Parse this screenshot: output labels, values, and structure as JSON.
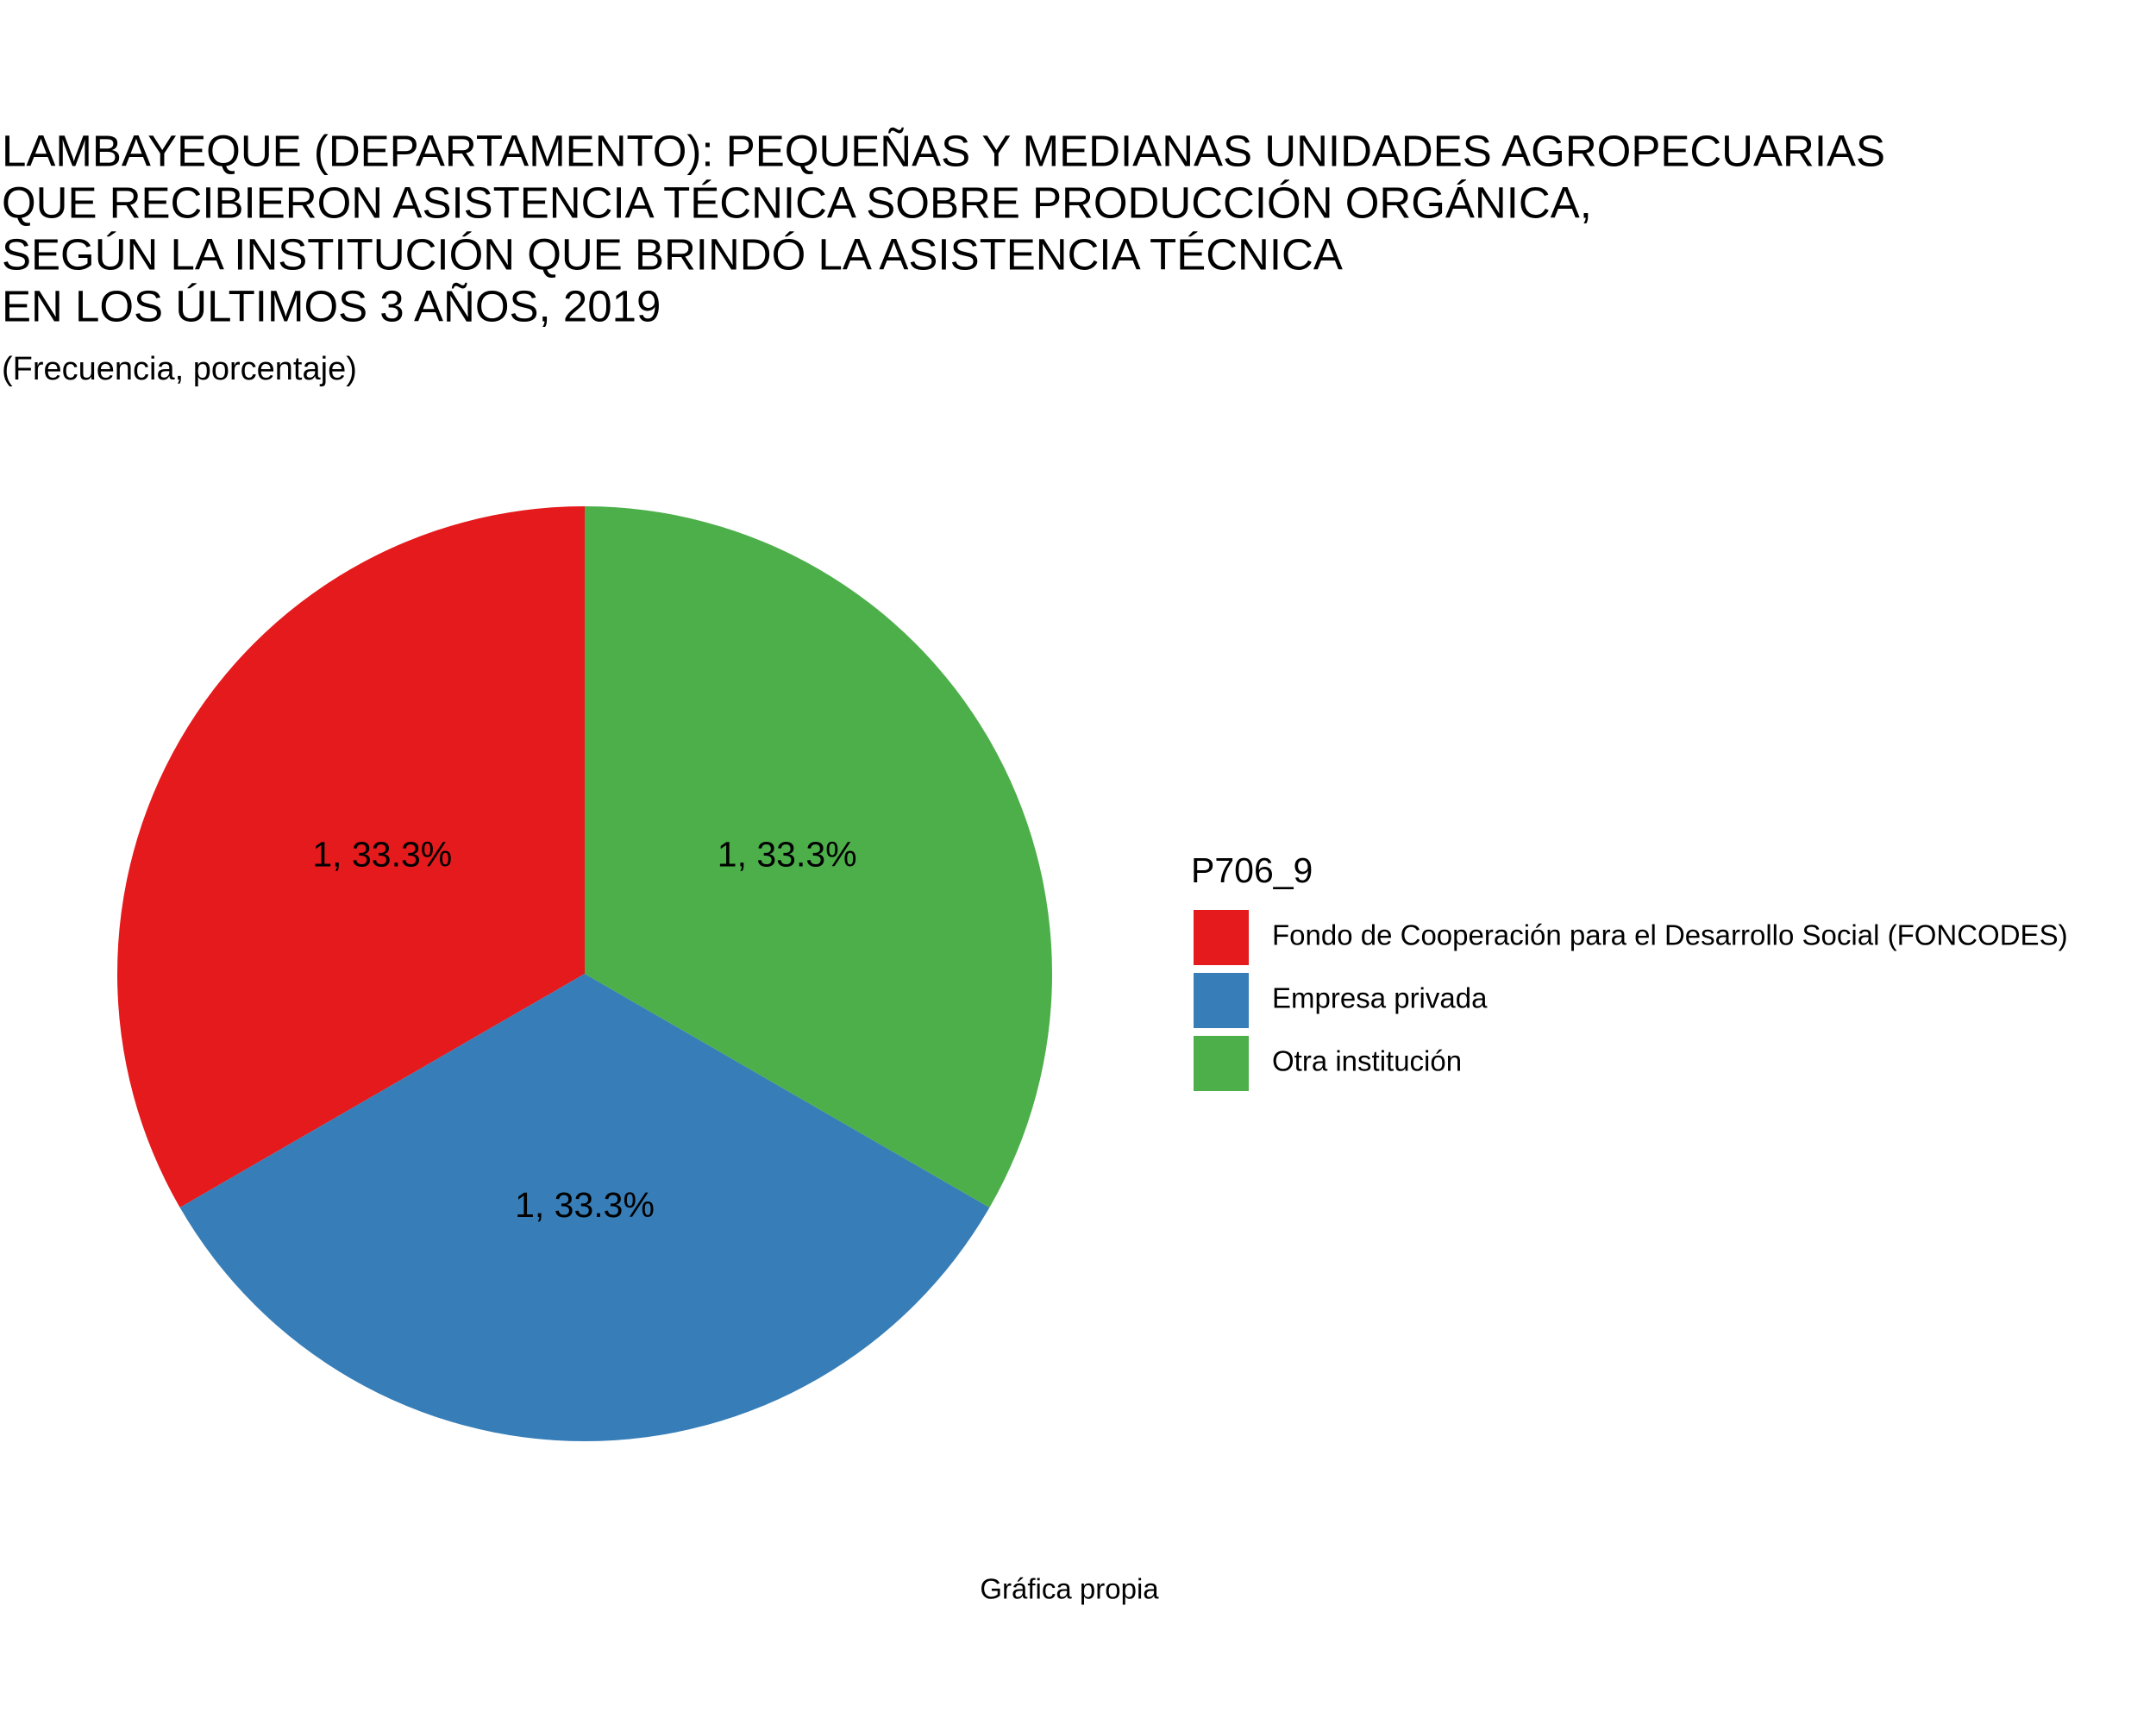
{
  "chart_data": {
    "type": "pie",
    "title": [
      "LAMBAYEQUE (DEPARTAMENTO): PEQUEÑAS Y MEDIANAS UNIDADES AGROPECUARIAS",
      "QUE RECIBIERON ASISTENCIA TÉCNICA SOBRE PRODUCCIÓN ORGÁNICA,",
      "SEGÚN LA INSTITUCIÓN QUE BRINDÓ LA ASISTENCIA TÉCNICA",
      "EN LOS ÚLTIMOS 3 AÑOS, 2019"
    ],
    "subtitle": "(Frecuencia, porcentaje)",
    "legend_title": "P706_9",
    "categories": [
      "Fondo de Cooperación para el Desarrollo Social (FONCODES)",
      "Empresa privada",
      "Otra institución"
    ],
    "values": [
      1,
      1,
      1
    ],
    "value_labels": [
      "1, 33.3%",
      "1, 33.3%",
      "1, 33.3%"
    ],
    "colors": [
      "#e41a1c",
      "#377eb8",
      "#4daf4a"
    ],
    "caption": "Gráfica propia"
  }
}
